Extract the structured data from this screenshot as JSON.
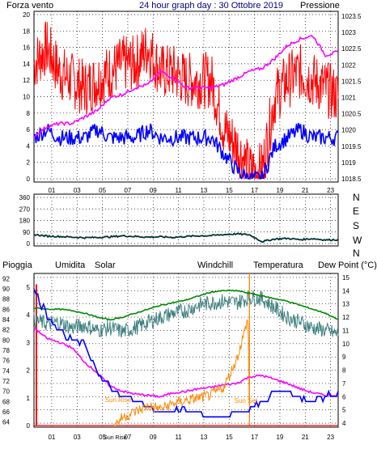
{
  "header": {
    "title": "24 hour graph day : 30 Ottobre 2019",
    "left_label": "Forza vento",
    "right_label": "Pressione"
  },
  "colors": {
    "wind": "#ff0000",
    "gust": "#0000ff",
    "pressure": "#ff00ff",
    "direction": "#003333",
    "rain": "#ff0000",
    "humidity": "#0000ff",
    "solar": "#ff8800",
    "windchill": "#408080",
    "temperature": "#008800",
    "dewpoint": "#ff00ff",
    "sun_marker": "#ff8800"
  },
  "chart_data": [
    {
      "type": "line",
      "name": "wind-pressure",
      "left_axis": {
        "label": "Forza vento",
        "ticks": [
          "0",
          "2",
          "4",
          "6",
          "8",
          "10",
          "12",
          "14",
          "16",
          "18",
          "20"
        ],
        "ylim": [
          0,
          20
        ]
      },
      "right_axis": {
        "label": "Pressione",
        "ticks": [
          "1018.5",
          "1019",
          "1019.5",
          "1020",
          "1020.5",
          "1021",
          "1021.5",
          "1022",
          "1022.5",
          "1023",
          "1023.5"
        ],
        "ylim": [
          1018.5,
          1023.5
        ]
      },
      "x_ticks": [
        "01",
        "03",
        "05",
        "07",
        "09",
        "11",
        "13",
        "15",
        "17",
        "19",
        "21",
        "23"
      ],
      "xlim": [
        0,
        24
      ],
      "series": [
        {
          "name": "Forza vento",
          "axis": "left",
          "x": [
            0,
            1,
            2,
            3,
            4,
            5,
            6,
            7,
            8,
            9,
            10,
            11,
            12,
            13,
            14,
            15,
            16,
            17,
            18,
            19,
            20,
            21,
            22,
            23,
            24
          ],
          "y": [
            14,
            16,
            13,
            12,
            11,
            12,
            13,
            14,
            14,
            16,
            13,
            13,
            12,
            12,
            12,
            6,
            4,
            1,
            1,
            10,
            12,
            13,
            12,
            11,
            10
          ]
        },
        {
          "axis": "left",
          "x": [
            0,
            1,
            2,
            3,
            4,
            5,
            6,
            7,
            8,
            9,
            10,
            11,
            12,
            13,
            14,
            15,
            16,
            17,
            18,
            19,
            20,
            21,
            22,
            23,
            24
          ],
          "y": [
            5,
            6,
            5,
            5,
            5,
            6,
            5,
            5,
            5,
            6,
            5,
            5,
            5,
            5,
            5,
            3,
            1,
            0,
            0,
            4,
            5,
            6,
            5,
            5,
            5
          ]
        },
        {
          "name": "Pressione",
          "axis": "right",
          "x": [
            0,
            1,
            2,
            3,
            4,
            5,
            6,
            7,
            8,
            9,
            10,
            11,
            12,
            13,
            14,
            15,
            16,
            17,
            18,
            19,
            20,
            21,
            22,
            23,
            24
          ],
          "y": [
            1019.8,
            1020.1,
            1020.2,
            1020.2,
            1020.4,
            1020.6,
            1021.0,
            1021.1,
            1021.3,
            1021.4,
            1021.8,
            1021.6,
            1021.3,
            1021.3,
            1021.3,
            1021.4,
            1021.6,
            1021.8,
            1021.9,
            1022.2,
            1022.6,
            1022.8,
            1022.9,
            1022.3,
            1022.4
          ]
        }
      ]
    },
    {
      "type": "line",
      "name": "direction",
      "left_axis": {
        "ticks": [
          "0",
          "90",
          "180",
          "270",
          "360"
        ],
        "ylim": [
          0,
          360
        ]
      },
      "right_axis": {
        "ticks": [
          "N",
          "W",
          "S",
          "E",
          "N"
        ]
      },
      "xlim": [
        0,
        24
      ],
      "series": [
        {
          "x": [
            0,
            1,
            2,
            3,
            4,
            5,
            6,
            7,
            8,
            9,
            10,
            11,
            12,
            13,
            14,
            15,
            16,
            17,
            18,
            19,
            20,
            21,
            22,
            23,
            24
          ],
          "y": [
            70,
            58,
            55,
            50,
            45,
            48,
            52,
            60,
            55,
            50,
            52,
            48,
            55,
            60,
            62,
            70,
            75,
            68,
            15,
            35,
            40,
            30,
            38,
            28,
            30
          ]
        }
      ]
    },
    {
      "type": "line",
      "name": "weather",
      "legend": [
        "Pioggia",
        "Umidita",
        "Solar",
        "Windchill",
        "Temperatura",
        "Dew Point (°C)"
      ],
      "left_axis": {
        "ticks": [
          "64",
          "66",
          "68",
          "70",
          "72",
          "74",
          "76",
          "78",
          "80",
          "82",
          "84",
          "86",
          "88",
          "90",
          "92"
        ],
        "ylim": [
          63,
          93
        ]
      },
      "left_axis2": {
        "ticks": [
          "0",
          "1",
          "2",
          "3",
          "4",
          "5"
        ],
        "ylim": [
          0,
          5.2
        ]
      },
      "right_axis": {
        "ticks": [
          "4",
          "5",
          "6",
          "7",
          "8",
          "9",
          "10",
          "11",
          "12",
          "13",
          "14",
          "15"
        ],
        "ylim": [
          3.7,
          15.3
        ]
      },
      "x_ticks": [
        "01",
        "03",
        "05",
        "07",
        "09",
        "11",
        "13",
        "15",
        "17",
        "19",
        "21",
        "23"
      ],
      "xlim": [
        0,
        24
      ],
      "annotations": [
        "Sun Rise",
        "Sun Set"
      ],
      "series": [
        {
          "name": "Temperatura",
          "axis": "right",
          "x": [
            0,
            1,
            2,
            3,
            4,
            5,
            6,
            7,
            8,
            9,
            10,
            11,
            12,
            13,
            14,
            15,
            16,
            17,
            18,
            19,
            20,
            21,
            22,
            23,
            24
          ],
          "y": [
            12.7,
            12.6,
            12.6,
            12.5,
            12.3,
            12.0,
            11.8,
            12.0,
            12.3,
            12.6,
            12.9,
            13.1,
            13.3,
            13.6,
            13.9,
            14.0,
            14.0,
            13.8,
            13.6,
            13.4,
            13.2,
            12.9,
            12.6,
            12.3,
            11.8
          ]
        },
        {
          "name": "Windchill",
          "axis": "right",
          "x": [
            0,
            1,
            2,
            3,
            4,
            5,
            6,
            7,
            8,
            9,
            10,
            11,
            12,
            13,
            14,
            15,
            16,
            17,
            18,
            19,
            20,
            21,
            22,
            23,
            24
          ],
          "y": [
            11.8,
            11.5,
            11.6,
            11.2,
            11.4,
            11.0,
            11.2,
            10.9,
            11.2,
            11.6,
            12.0,
            12.3,
            12.5,
            12.9,
            13.1,
            13.2,
            13.1,
            13.5,
            13.4,
            12.7,
            12.0,
            11.6,
            11.2,
            11.0,
            10.7
          ]
        },
        {
          "name": "Dew Point (°C)",
          "axis": "right",
          "x": [
            0,
            1,
            2,
            3,
            4,
            5,
            6,
            7,
            8,
            9,
            10,
            11,
            12,
            13,
            14,
            15,
            16,
            17,
            18,
            19,
            20,
            21,
            22,
            23,
            24
          ],
          "y": [
            11.2,
            10.4,
            10.1,
            9.7,
            8.6,
            7.8,
            6.8,
            6.4,
            6.2,
            6.1,
            6.0,
            6.3,
            6.4,
            6.6,
            6.7,
            6.9,
            7.0,
            7.5,
            7.6,
            7.3,
            7.0,
            6.6,
            6.3,
            6.1,
            6.1
          ]
        },
        {
          "name": "Umidita",
          "axis": "left",
          "x": [
            0,
            1,
            2,
            3,
            4,
            5,
            6,
            7,
            8,
            9,
            10,
            11,
            12,
            13,
            14,
            15,
            16,
            17,
            18,
            19,
            20,
            21,
            22,
            23,
            24
          ],
          "y": [
            90,
            85,
            82,
            80,
            79,
            74,
            71,
            69,
            68,
            67,
            66,
            67,
            66,
            66,
            65,
            65,
            66,
            66,
            68,
            70,
            70,
            69,
            68,
            69,
            70
          ]
        },
        {
          "name": "Solar",
          "axis": "left2",
          "x": [
            6.3,
            7,
            8,
            9,
            10,
            11,
            12,
            13,
            14,
            15,
            15.5,
            16,
            16.5,
            16.9,
            17.0
          ],
          "y": [
            0,
            0.3,
            0.5,
            0.7,
            0.6,
            0.8,
            0.9,
            1.0,
            1.1,
            1.4,
            1.9,
            2.4,
            3.2,
            3.9,
            0
          ]
        },
        {
          "name": "Pioggia",
          "axis": "left2",
          "x": [
            0,
            24
          ],
          "y": [
            0,
            0
          ]
        }
      ]
    }
  ]
}
